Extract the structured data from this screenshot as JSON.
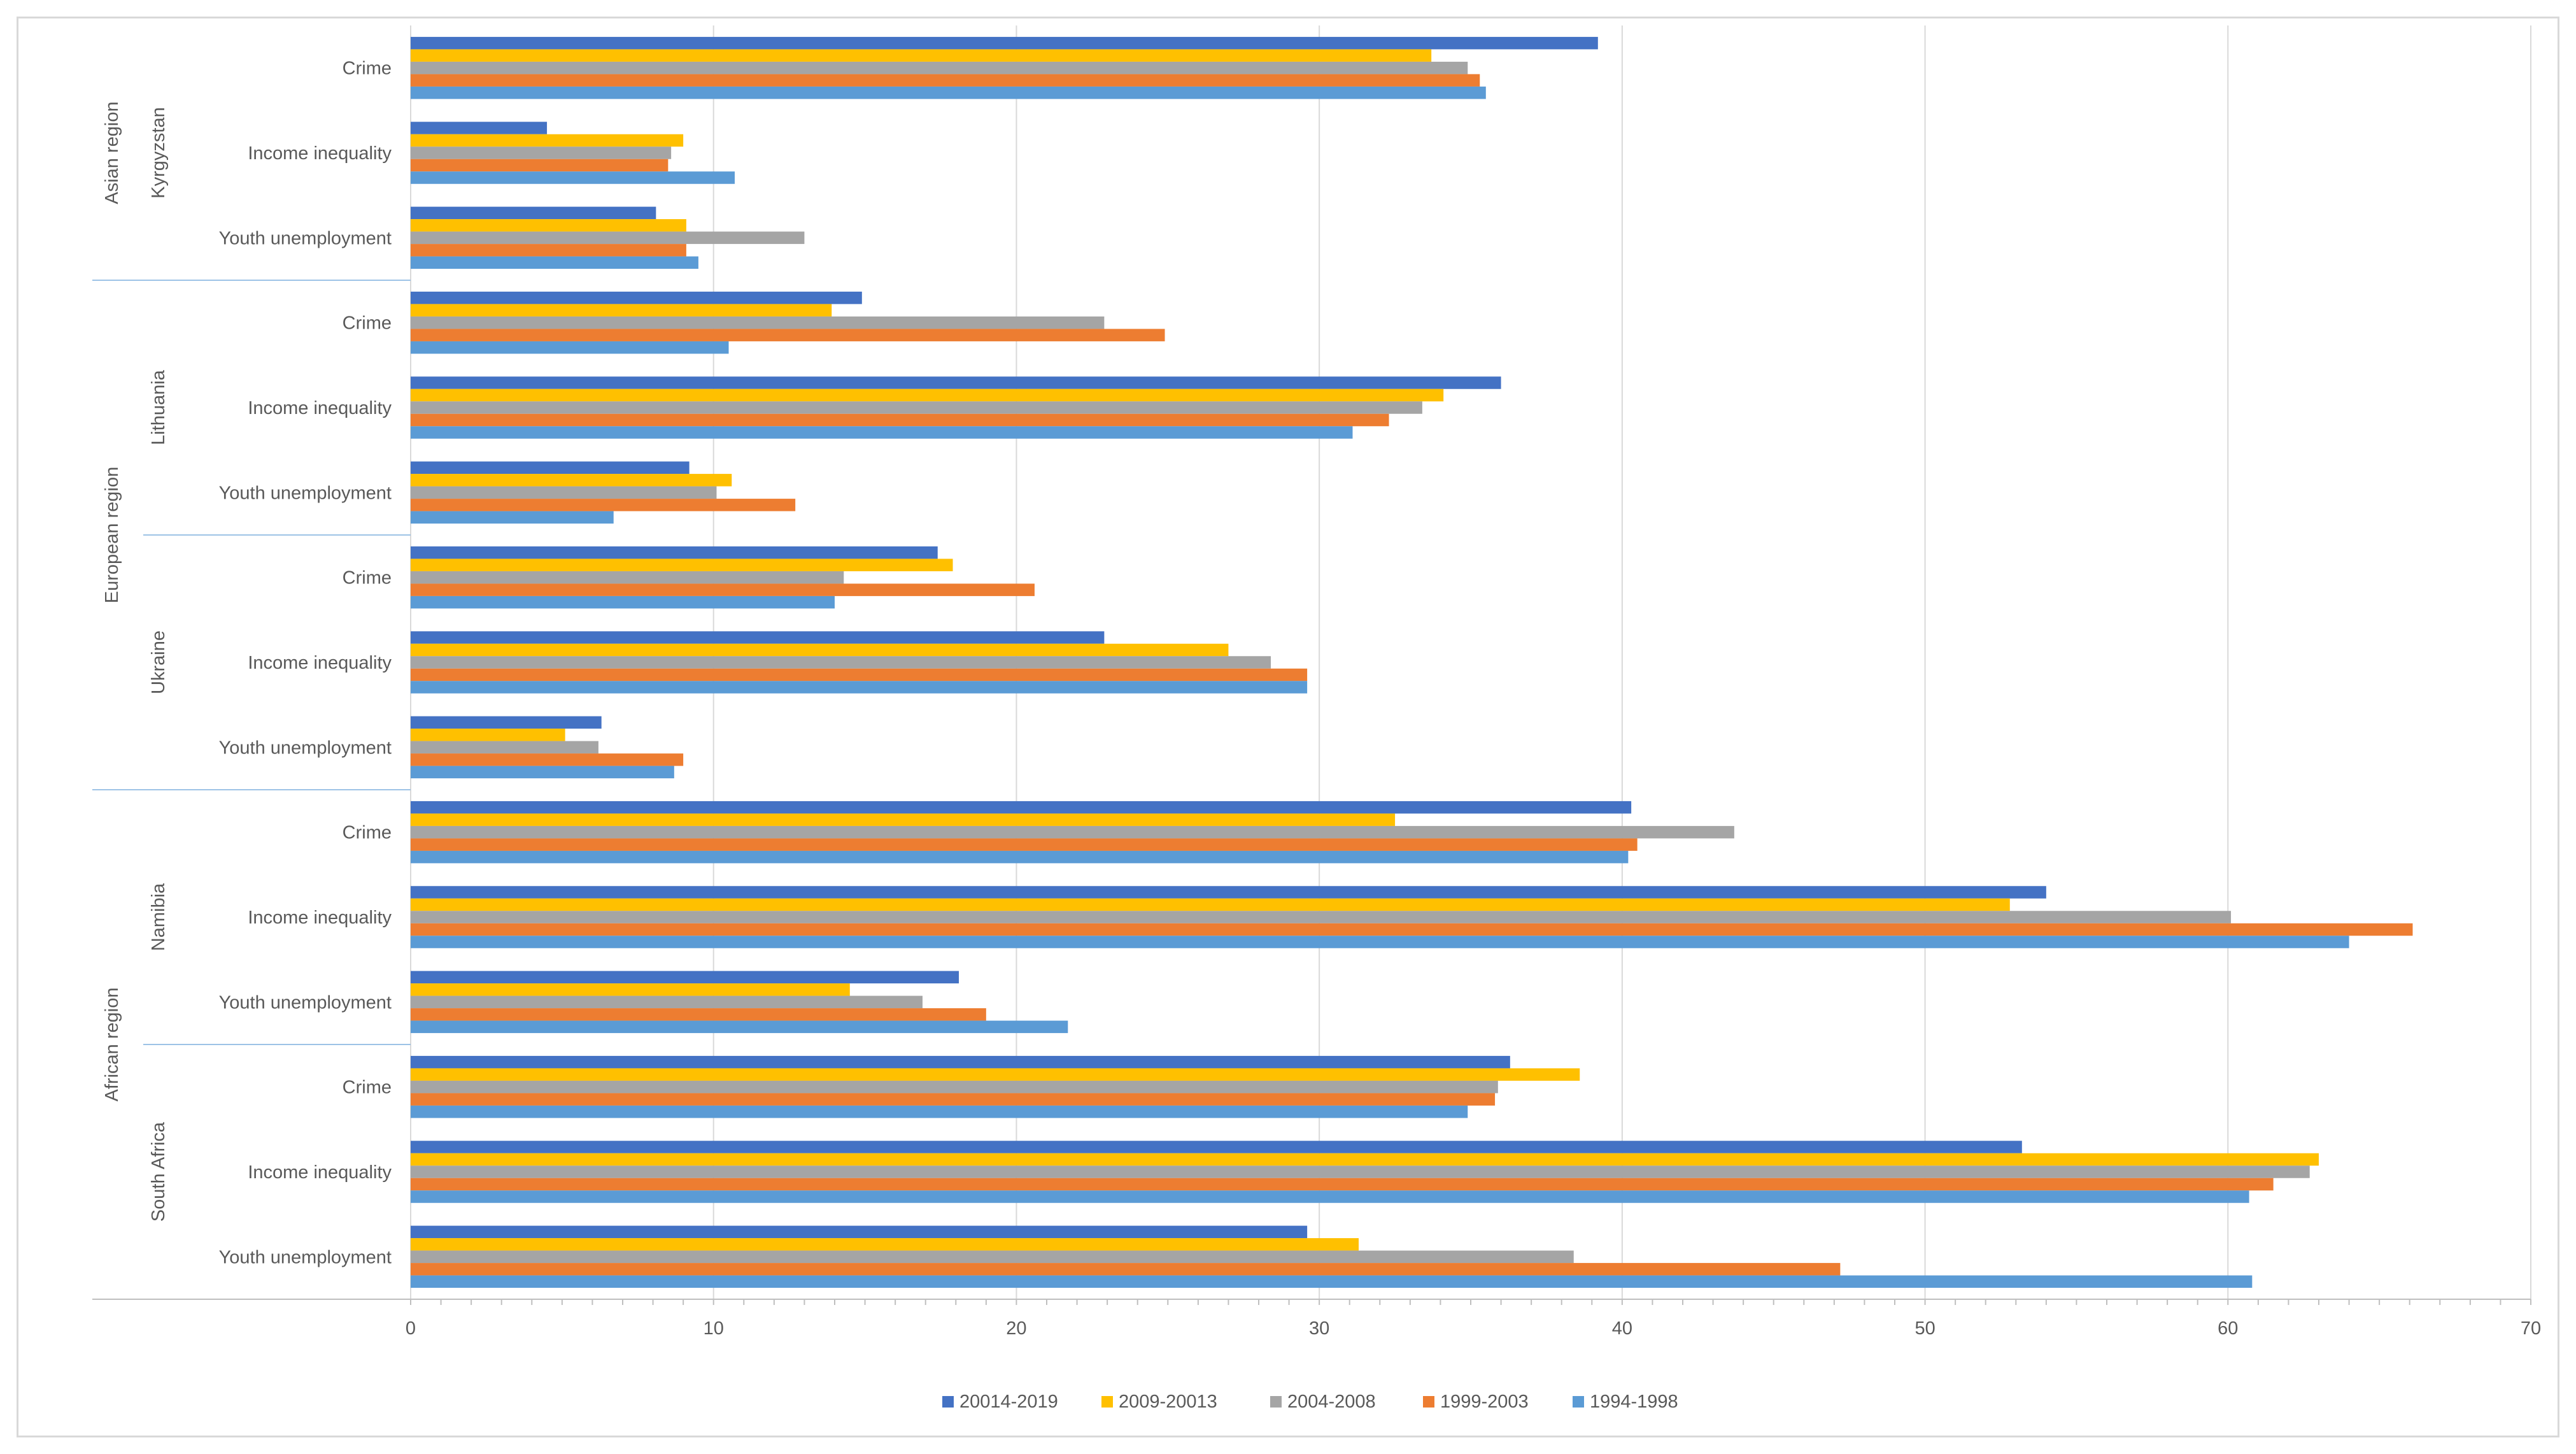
{
  "chart_data": {
    "type": "bar",
    "orientation": "horizontal",
    "title": "",
    "xlabel": "",
    "ylabel": "",
    "xlim": [
      0,
      70
    ],
    "x_ticks": [
      0,
      10,
      20,
      30,
      40,
      50,
      60,
      70
    ],
    "grid": "vertical",
    "legend_position": "bottom",
    "regions": [
      {
        "name": "Asian region",
        "countries": [
          "Kyrgyzstan"
        ]
      },
      {
        "name": "European region",
        "countries": [
          "Lithuania",
          "Ukraine"
        ]
      },
      {
        "name": "African region",
        "countries": [
          "Namibia",
          "South Africa"
        ]
      }
    ],
    "categories_top_to_bottom": [
      {
        "country": "Kyrgyzstan",
        "indicator": "Crime"
      },
      {
        "country": "Kyrgyzstan",
        "indicator": "Income inequality"
      },
      {
        "country": "Kyrgyzstan",
        "indicator": "Youth unemployment"
      },
      {
        "country": "Lithuania",
        "indicator": "Crime"
      },
      {
        "country": "Lithuania",
        "indicator": "Income inequality"
      },
      {
        "country": "Lithuania",
        "indicator": "Youth unemployment"
      },
      {
        "country": "Ukraine",
        "indicator": "Crime"
      },
      {
        "country": "Ukraine",
        "indicator": "Income inequality"
      },
      {
        "country": "Ukraine",
        "indicator": "Youth unemployment"
      },
      {
        "country": "Namibia",
        "indicator": "Crime"
      },
      {
        "country": "Namibia",
        "indicator": "Income inequality"
      },
      {
        "country": "Namibia",
        "indicator": "Youth unemployment"
      },
      {
        "country": "South Africa",
        "indicator": "Crime"
      },
      {
        "country": "South Africa",
        "indicator": "Income inequality"
      },
      {
        "country": "South Africa",
        "indicator": "Youth unemployment"
      }
    ],
    "series": [
      {
        "name": "20014-2019",
        "color": "#4472c4",
        "values": [
          39.2,
          4.5,
          8.1,
          14.9,
          36.0,
          9.2,
          17.4,
          22.9,
          6.3,
          40.3,
          54.0,
          18.1,
          36.3,
          53.2,
          29.6
        ]
      },
      {
        "name": "2009-20013",
        "color": "#ffc000",
        "values": [
          33.7,
          9.0,
          9.1,
          13.9,
          34.1,
          10.6,
          17.9,
          27.0,
          5.1,
          32.5,
          52.8,
          14.5,
          38.6,
          63.0,
          31.3
        ]
      },
      {
        "name": "2004-2008",
        "color": "#a5a5a5",
        "values": [
          34.9,
          8.6,
          13.0,
          22.9,
          33.4,
          10.1,
          14.3,
          28.4,
          6.2,
          43.7,
          60.1,
          16.9,
          35.9,
          62.7,
          38.4
        ]
      },
      {
        "name": "1999-2003",
        "color": "#ed7d31",
        "values": [
          35.3,
          8.5,
          9.1,
          24.9,
          32.3,
          12.7,
          20.6,
          29.6,
          9.0,
          40.5,
          66.1,
          19.0,
          35.8,
          61.5,
          47.2
        ]
      },
      {
        "name": "1994-1998",
        "color": "#5b9bd5",
        "values": [
          35.5,
          10.7,
          9.5,
          10.5,
          31.1,
          6.7,
          14.0,
          29.6,
          8.7,
          40.2,
          64.0,
          21.7,
          34.9,
          60.7,
          60.8
        ]
      }
    ]
  }
}
